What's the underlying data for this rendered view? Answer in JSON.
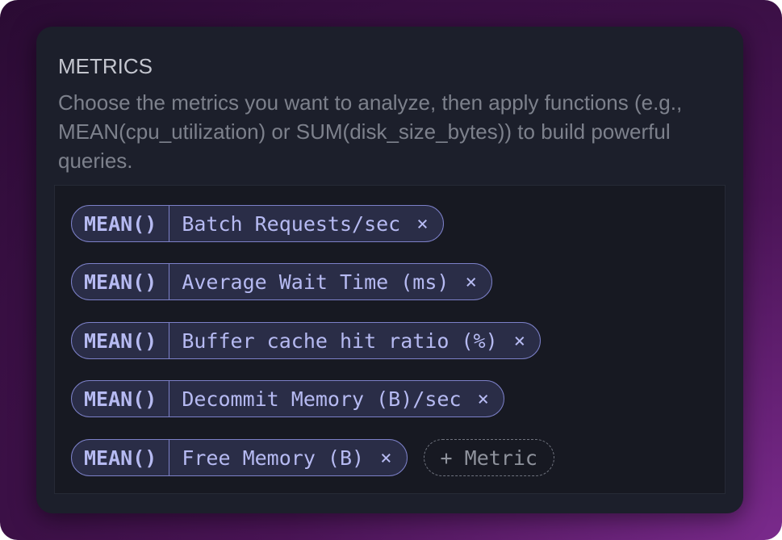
{
  "section": {
    "title": "METRICS",
    "description": "Choose the metrics you want to analyze, then apply functions (e.g., MEAN(cpu_utilization) or SUM(disk_size_bytes)) to build powerful queries."
  },
  "metrics": [
    {
      "function": "MEAN()",
      "name": "Batch Requests/sec",
      "remove": "×"
    },
    {
      "function": "MEAN()",
      "name": "Average Wait Time (ms)",
      "remove": "×"
    },
    {
      "function": "MEAN()",
      "name": "Buffer cache hit ratio (%)",
      "remove": "×"
    },
    {
      "function": "MEAN()",
      "name": "Decommit Memory (B)/sec",
      "remove": "×"
    },
    {
      "function": "MEAN()",
      "name": "Free Memory (B)",
      "remove": "×"
    }
  ],
  "add_metric": {
    "icon": "plus-icon",
    "label": "+ Metric"
  },
  "colors": {
    "chip_border": "#7c80c8",
    "chip_text": "#b6baf2",
    "card": "#1c1f2b"
  }
}
